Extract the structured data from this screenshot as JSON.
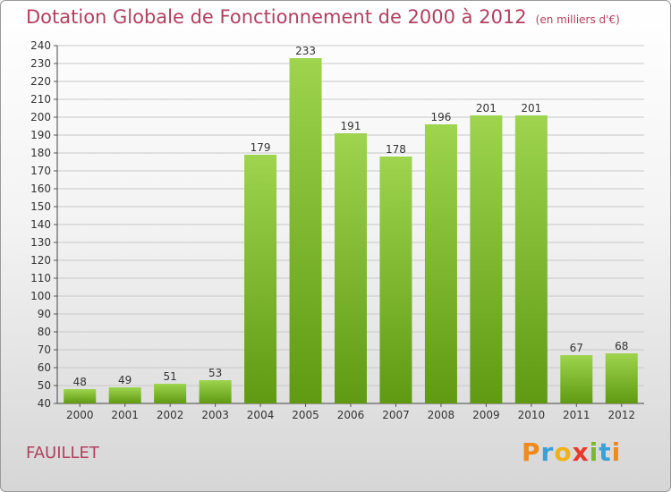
{
  "header": {
    "title": "Dotation Globale de Fonctionnement de 2000 à 2012",
    "unit": "(en milliers d'€)"
  },
  "footer": {
    "commune": "FAUILLET",
    "logo": "Proxiti"
  },
  "colors": {
    "bar_top": "#9ed44e",
    "bar_bottom": "#5f9a12",
    "title": "#b0405f",
    "grid": "#c8c8c8"
  },
  "chart_data": {
    "type": "bar",
    "title": "Dotation Globale de Fonctionnement de 2000 à 2012",
    "subtitle": "(en milliers d'€)",
    "categories": [
      "2000",
      "2001",
      "2002",
      "2003",
      "2004",
      "2005",
      "2006",
      "2007",
      "2008",
      "2009",
      "2010",
      "2011",
      "2012"
    ],
    "values": [
      48,
      49,
      51,
      53,
      179,
      233,
      191,
      178,
      196,
      201,
      201,
      67,
      68
    ],
    "ylim": [
      40,
      240
    ],
    "yticks": [
      40,
      50,
      60,
      70,
      80,
      90,
      100,
      110,
      120,
      130,
      140,
      150,
      160,
      170,
      180,
      190,
      200,
      210,
      220,
      230,
      240
    ],
    "grid": true,
    "xlabel": "",
    "ylabel": ""
  }
}
